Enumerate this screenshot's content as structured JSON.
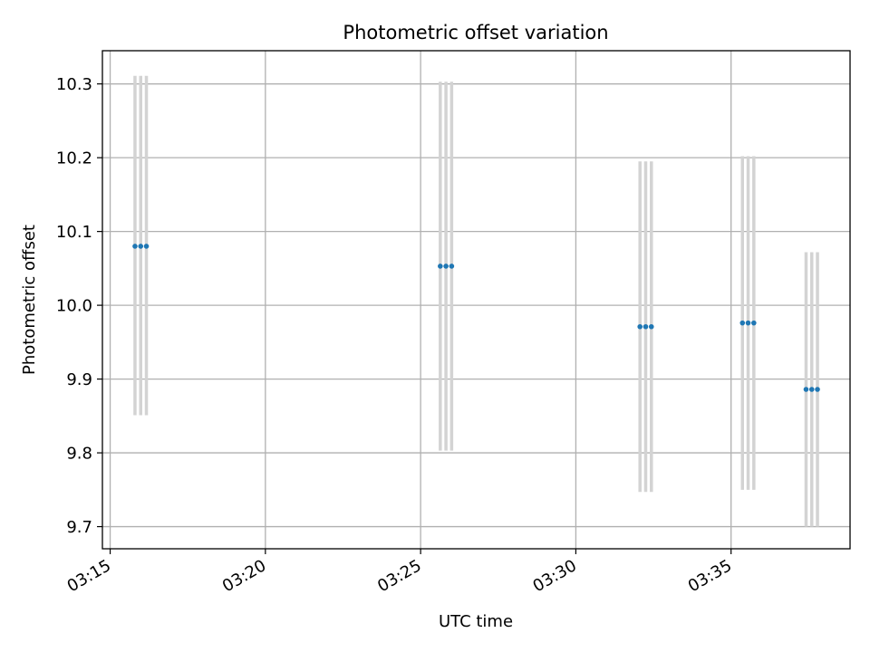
{
  "chart_data": {
    "type": "scatter",
    "title": "Photometric offset variation",
    "xlabel": "UTC time",
    "ylabel": "Photometric offset",
    "x_tick_labels": [
      "03:15",
      "03:20",
      "03:25",
      "03:30",
      "03:35"
    ],
    "x_ticks": [
      "03:15:00",
      "03:20:00",
      "03:25:00",
      "03:30:00",
      "03:35:00"
    ],
    "y_ticks": [
      9.7,
      9.8,
      9.9,
      10.0,
      10.1,
      10.2,
      10.3
    ],
    "y_tick_labels": [
      "9.7",
      "9.8",
      "9.9",
      "10.0",
      "10.1",
      "10.2",
      "10.3"
    ],
    "xlim": [
      "03:14:45",
      "03:38:50"
    ],
    "ylim": [
      9.67,
      10.345
    ],
    "grid": true,
    "points": [
      {
        "x": "03:15:48",
        "y": 10.08,
        "err_low": 9.851,
        "err_high": 10.311
      },
      {
        "x": "03:15:59",
        "y": 10.08,
        "err_low": 9.851,
        "err_high": 10.311
      },
      {
        "x": "03:16:10",
        "y": 10.08,
        "err_low": 9.851,
        "err_high": 10.311
      },
      {
        "x": "03:25:38",
        "y": 10.053,
        "err_low": 9.803,
        "err_high": 10.303
      },
      {
        "x": "03:25:49",
        "y": 10.053,
        "err_low": 9.803,
        "err_high": 10.303
      },
      {
        "x": "03:26:00",
        "y": 10.053,
        "err_low": 9.803,
        "err_high": 10.303
      },
      {
        "x": "03:32:04",
        "y": 9.971,
        "err_low": 9.747,
        "err_high": 10.195
      },
      {
        "x": "03:32:15",
        "y": 9.971,
        "err_low": 9.747,
        "err_high": 10.195
      },
      {
        "x": "03:32:26",
        "y": 9.971,
        "err_low": 9.747,
        "err_high": 10.195
      },
      {
        "x": "03:35:22",
        "y": 9.976,
        "err_low": 9.75,
        "err_high": 10.202
      },
      {
        "x": "03:35:33",
        "y": 9.976,
        "err_low": 9.75,
        "err_high": 10.202
      },
      {
        "x": "03:35:44",
        "y": 9.976,
        "err_low": 9.75,
        "err_high": 10.202
      },
      {
        "x": "03:37:25",
        "y": 9.886,
        "err_low": 9.7,
        "err_high": 10.072
      },
      {
        "x": "03:37:36",
        "y": 9.886,
        "err_low": 9.7,
        "err_high": 10.072
      },
      {
        "x": "03:37:47",
        "y": 9.886,
        "err_low": 9.7,
        "err_high": 10.072
      }
    ],
    "colors": {
      "marker": "#1f77b4",
      "errorbar": "#d3d3d3",
      "grid": "#b0b0b0",
      "axes": "#000000"
    }
  }
}
